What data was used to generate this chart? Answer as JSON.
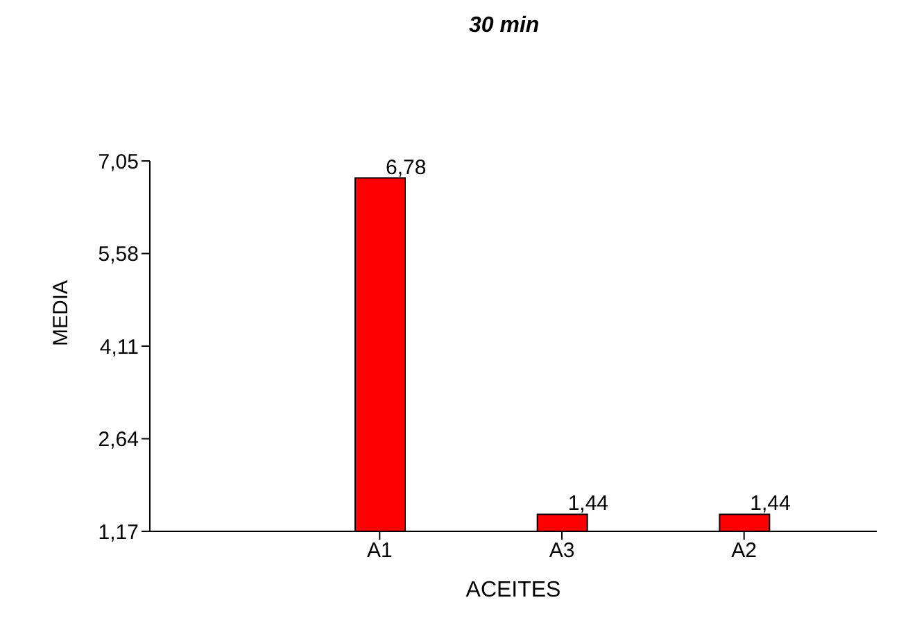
{
  "chart_data": {
    "type": "bar",
    "title": "30 min",
    "xlabel": "ACEITES",
    "ylabel": "MEDIA",
    "categories": [
      "A1",
      "A3",
      "A2"
    ],
    "values": [
      6.78,
      1.44,
      1.44
    ],
    "value_labels": [
      "6,78",
      "1,44",
      "1,44"
    ],
    "color": "#ff0000",
    "ylim": [
      1.17,
      7.05
    ],
    "yticks": [
      {
        "value": 1.17,
        "label": "1,17"
      },
      {
        "value": 2.64,
        "label": "2,64"
      },
      {
        "value": 4.11,
        "label": "4,11"
      },
      {
        "value": 5.58,
        "label": "5,58"
      },
      {
        "value": 7.05,
        "label": "7,05"
      }
    ],
    "grid": false
  }
}
